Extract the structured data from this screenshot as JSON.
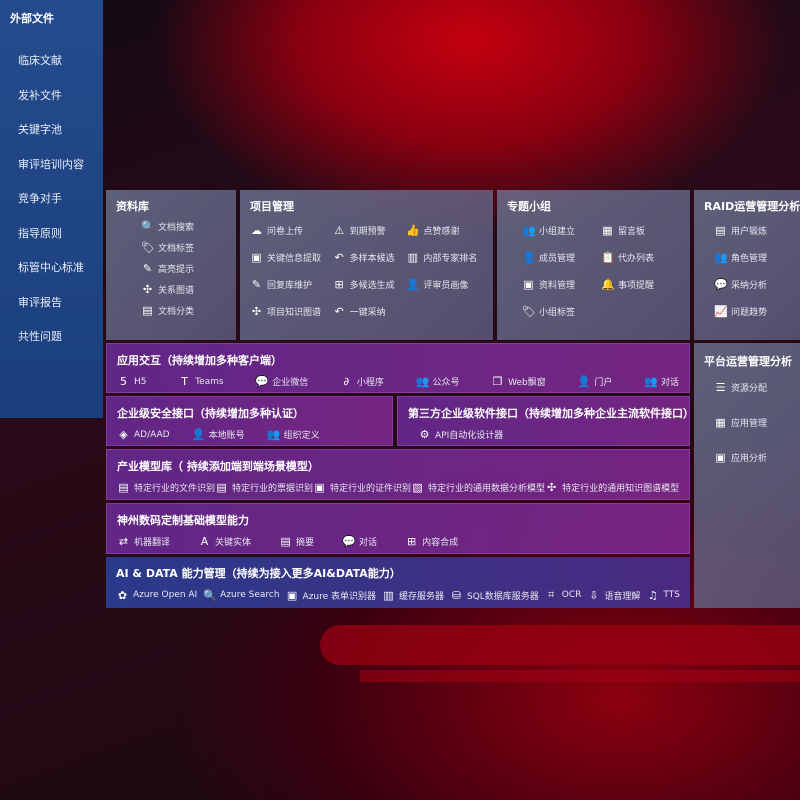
{
  "sidebar": {
    "title": "外部文件",
    "items": [
      "临床文献",
      "发补文件",
      "关键字池",
      "审评培训内容",
      "竞争对手",
      "指导原则",
      "标管中心标准",
      "审评报告",
      "共性问题"
    ]
  },
  "library": {
    "title": "资料库",
    "items": [
      {
        "icon": "🔍",
        "label": "文档搜索"
      },
      {
        "icon": "🏷",
        "label": "文档标签"
      },
      {
        "icon": "✎",
        "label": "高亮提示"
      },
      {
        "icon": "✣",
        "label": "关系图谱"
      },
      {
        "icon": "▤",
        "label": "文档分类"
      }
    ]
  },
  "project": {
    "title": "项目管理",
    "items": [
      {
        "icon": "☁",
        "label": "问卷上传"
      },
      {
        "icon": "⚠",
        "label": "到期预警"
      },
      {
        "icon": "👍",
        "label": "点赞感谢"
      },
      {
        "icon": "▣",
        "label": "关键信息提取"
      },
      {
        "icon": "↶",
        "label": "多样本候选"
      },
      {
        "icon": "▥",
        "label": "内部专家排名"
      },
      {
        "icon": "✎",
        "label": "回复库维护"
      },
      {
        "icon": "⊞",
        "label": "多候选生成"
      },
      {
        "icon": "👤",
        "label": "评审员画像"
      },
      {
        "icon": "✣",
        "label": "项目知识图谱"
      },
      {
        "icon": "↶",
        "label": "一键采纳"
      }
    ]
  },
  "group": {
    "title": "专题小组",
    "items": [
      {
        "icon": "👥",
        "label": "小组建立"
      },
      {
        "icon": "▦",
        "label": "留言板"
      },
      {
        "icon": "👤",
        "label": "成员管理"
      },
      {
        "icon": "📋",
        "label": "代办列表"
      },
      {
        "icon": "▣",
        "label": "资料管理"
      },
      {
        "icon": "🔔",
        "label": "事项提醒"
      },
      {
        "icon": "🏷",
        "label": "小组标签"
      }
    ]
  },
  "raid": {
    "title": "RAID运营管理分析",
    "items": [
      {
        "icon": "▤",
        "label": "用户锻炼"
      },
      {
        "icon": "👥",
        "label": "角色管理"
      },
      {
        "icon": "💬",
        "label": "采纳分析"
      },
      {
        "icon": "📈",
        "label": "问题趋势"
      }
    ]
  },
  "platform": {
    "title": "平台运营管理分析",
    "items": [
      {
        "icon": "☰",
        "label": "资源分配"
      },
      {
        "icon": "▦",
        "label": "应用管理"
      },
      {
        "icon": "▣",
        "label": "应用分析"
      }
    ]
  },
  "app": {
    "title": "应用交互（持续增加多种客户端）",
    "items": [
      {
        "icon": "5",
        "label": "H5"
      },
      {
        "icon": "T",
        "label": "Teams"
      },
      {
        "icon": "💬",
        "label": "企业微信"
      },
      {
        "icon": "∂",
        "label": "小程序"
      },
      {
        "icon": "👥",
        "label": "公众号"
      },
      {
        "icon": "❐",
        "label": "Web飘窗"
      },
      {
        "icon": "👤",
        "label": "门户"
      },
      {
        "icon": "👥",
        "label": "对话"
      }
    ]
  },
  "security": {
    "title": "企业级安全接口（持续增加多种认证）",
    "items": [
      {
        "icon": "◈",
        "label": "AD/AAD"
      },
      {
        "icon": "👤",
        "label": "本地账号"
      },
      {
        "icon": "👥",
        "label": "组织定义"
      }
    ]
  },
  "third": {
    "title": "第三方企业级软件接口（持续增加多种企业主流软件接口）",
    "items": [
      {
        "icon": "⚙",
        "label": "API自动化设计器"
      }
    ]
  },
  "industry": {
    "title": "产业模型库（ 持续添加端到端场景模型）",
    "items": [
      {
        "icon": "▤",
        "label": "特定行业的文件识别"
      },
      {
        "icon": "▤",
        "label": "特定行业的票据识别"
      },
      {
        "icon": "▣",
        "label": "特定行业的证件识别"
      },
      {
        "icon": "▧",
        "label": "特定行业的通用数据分析模型"
      },
      {
        "icon": "✣",
        "label": "特定行业的通用知识图谱模型"
      }
    ]
  },
  "base": {
    "title": "神州数码定制基础模型能力",
    "items": [
      {
        "icon": "⇄",
        "label": "机器翻译"
      },
      {
        "icon": "A",
        "label": "关键实体"
      },
      {
        "icon": "▤",
        "label": "摘要"
      },
      {
        "icon": "💬",
        "label": "对话"
      },
      {
        "icon": "⊞",
        "label": "内容合成"
      }
    ]
  },
  "aidata": {
    "title": "AI & DATA 能力管理（持续为接入更多AI&DATA能力）",
    "items": [
      {
        "icon": "✿",
        "label": "Azure Open AI"
      },
      {
        "icon": "🔍",
        "label": "Azure Search"
      },
      {
        "icon": "▣",
        "label": "Azure 表单识别器"
      },
      {
        "icon": "▥",
        "label": "缓存服务器"
      },
      {
        "icon": "⛁",
        "label": "SQL数据库服务器"
      },
      {
        "icon": "⌗",
        "label": "OCR"
      },
      {
        "icon": "⇩",
        "label": "语音理解"
      },
      {
        "icon": "♫",
        "label": "TTS"
      }
    ]
  }
}
